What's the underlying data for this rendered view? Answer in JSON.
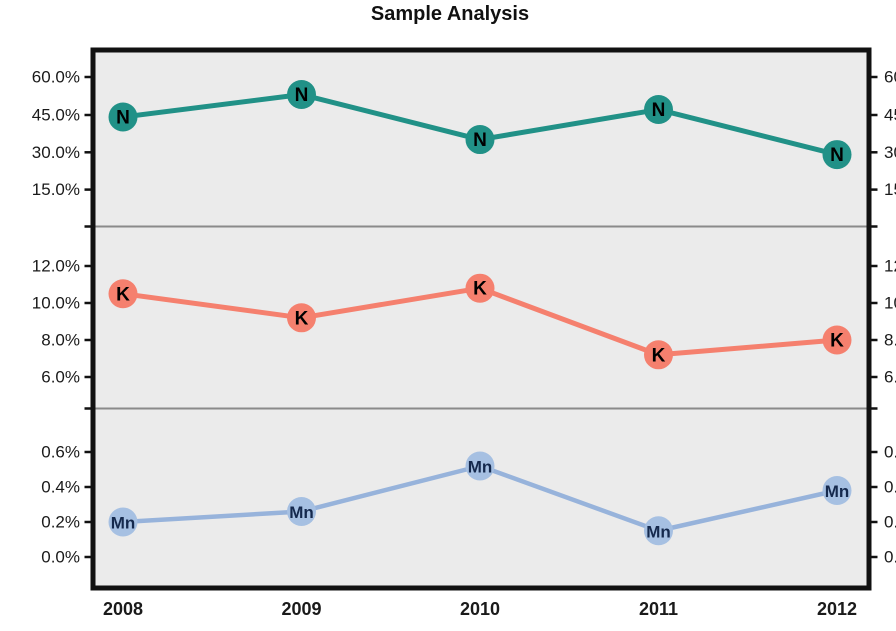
{
  "title": "Sample Analysis",
  "chart_data": {
    "type": "line",
    "title": "Sample Analysis",
    "layout_note": "three stacked panels sharing one x-axis, series labels drawn inside markers, right axis mirrors left tick labels but is clipped at image edge",
    "grid": false,
    "legend_position": "none",
    "categories": [
      "2008",
      "2009",
      "2010",
      "2011",
      "2012"
    ],
    "panels": [
      {
        "series_name": "N",
        "marker_label": "N",
        "unit": "%",
        "values": [
          44,
          53,
          35,
          47,
          29
        ],
        "yticks": [
          60.0,
          45.0,
          30.0,
          15.0
        ],
        "ytick_labels": [
          "60.0%",
          "45.0%",
          "30.0%",
          "15.0%"
        ],
        "color": "#219187",
        "line_color": "#219187",
        "marker_text_color": "#000000"
      },
      {
        "series_name": "K",
        "marker_label": "K",
        "unit": "%",
        "values": [
          10.5,
          9.2,
          10.8,
          7.2,
          8.0
        ],
        "yticks": [
          12.0,
          10.0,
          8.0,
          6.0
        ],
        "ytick_labels": [
          "12.0%",
          "10.0%",
          "8.0%",
          "6.0%"
        ],
        "color": "#f5806e",
        "line_color": "#f5806e",
        "marker_text_color": "#000000"
      },
      {
        "series_name": "Mn",
        "marker_label": "Mn",
        "unit": "%",
        "values": [
          0.2,
          0.26,
          0.52,
          0.15,
          0.38
        ],
        "yticks": [
          0.6,
          0.4,
          0.2,
          0.0
        ],
        "ytick_labels": [
          "0.6%",
          "0.4%",
          "0.2%",
          "0.0%"
        ],
        "color": "#a6c0e2",
        "line_color": "#97b3db",
        "marker_text_color": "#15294d"
      }
    ],
    "colors": {
      "panel_background": "#ebebeb",
      "plot_border": "#111111",
      "panel_separator": "#8a8a8a",
      "axis_text": "#1a1a1a",
      "title_text": "#111111"
    }
  }
}
